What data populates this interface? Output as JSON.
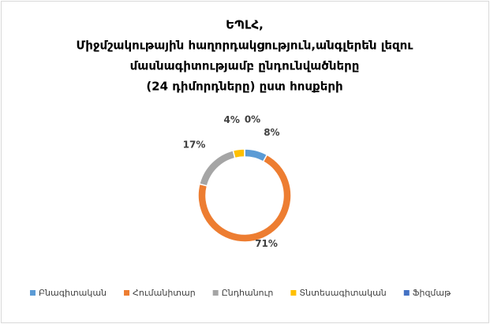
{
  "chart_data": {
    "type": "donut",
    "title": [
      "ԵՊԼՀ,",
      "Միջմշակութային հաղորդակցություն,անգլերեն լեզու",
      "մասնագիտությամբ ընդունվածները",
      "(24 դիմորդները) ըստ հոսքերի"
    ],
    "categories": [
      "Բնագիտական",
      "Հումանիտար",
      "Ընդհանուր",
      "Տնտեսագիտական",
      "Ֆիզմաթ"
    ],
    "values": [
      8,
      71,
      17,
      4,
      0
    ],
    "value_labels": [
      "8%",
      "71%",
      "17%",
      "4%",
      "0%"
    ],
    "colors": [
      "#5b9bd5",
      "#ed7d31",
      "#a5a5a5",
      "#ffc000",
      "#4472c4"
    ],
    "legend": "bottom"
  }
}
